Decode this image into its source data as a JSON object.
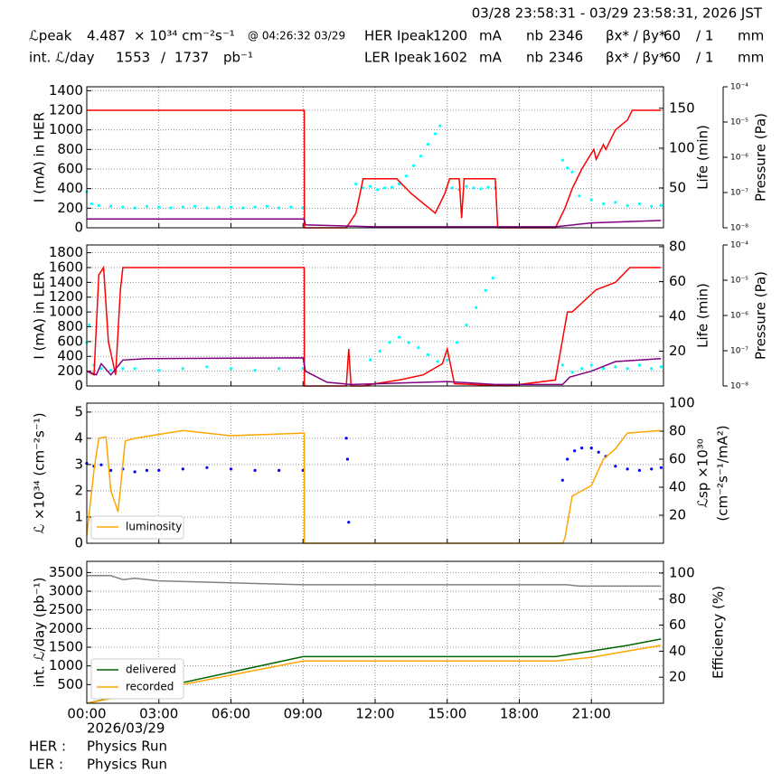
{
  "header": {
    "date_range": "03/28 23:58:31 - 03/29 23:58:31, 2026 JST",
    "row1": [
      "ℒpeak",
      "4.487",
      "× 10³⁴ cm⁻²s⁻¹",
      "@ 04:26:32 03/29",
      "HER Ipeak",
      "1200",
      "mA",
      "nb",
      "2346",
      "βx* / βy*",
      "60",
      "/ 1",
      "mm"
    ],
    "row2": [
      "int. ℒ/day",
      "1553",
      "/",
      "1737",
      "pb⁻¹",
      "LER Ipeak",
      "1602",
      "mA",
      "nb",
      "2346",
      "βx* / βy*",
      "60",
      "/ 1",
      "mm"
    ]
  },
  "chart_data": [
    {
      "type": "line",
      "ylabel": "I (mA) in HER",
      "y2label": "Life (min)",
      "y3label": "Pressure (Pa)",
      "grid": true,
      "xlim": [
        0,
        24
      ],
      "xticks": [
        0,
        3,
        6,
        9,
        12,
        15,
        18,
        21
      ],
      "ylim": [
        0,
        1440
      ],
      "yticks": [
        0,
        200,
        400,
        600,
        800,
        1000,
        1200,
        1400
      ],
      "y2lim": [
        0,
        177
      ],
      "y2ticks": [
        50,
        100,
        150
      ],
      "y3lim": [
        1e-08,
        0.0001
      ],
      "y3scale": "log",
      "y3ticks": [
        {
          "value": 1e-08,
          "label": "10⁻⁸"
        },
        {
          "value": 1e-07,
          "label": "10⁻⁷"
        },
        {
          "value": 1e-06,
          "label": "10⁻⁶"
        },
        {
          "value": 1e-05,
          "label": "10⁻⁵"
        },
        {
          "value": 0.0001,
          "label": "10⁻⁴"
        }
      ],
      "series": [
        {
          "type": "scatter",
          "color": "#00ffff",
          "axis": "y2",
          "x": [
            0,
            0.2,
            0.5,
            1,
            1.5,
            2,
            2.5,
            3,
            3.5,
            4,
            4.5,
            5,
            5.5,
            6,
            6.5,
            7,
            7.5,
            8,
            8.5,
            9,
            11.2,
            11.5,
            11.8,
            12.1,
            12.4,
            12.7,
            13.0,
            13.3,
            13.6,
            13.9,
            14.2,
            14.5,
            14.7,
            15.2,
            15.5,
            15.8,
            16.1,
            16.4,
            16.7,
            17.0,
            19.8,
            20.0,
            20.2,
            20.5,
            21,
            21.5,
            22,
            22.5,
            23,
            23.5,
            23.9
          ],
          "values": [
            45,
            30,
            28,
            27,
            26,
            25,
            27,
            26,
            25,
            26,
            27,
            25,
            26,
            26,
            25,
            26,
            27,
            25,
            26,
            25,
            55,
            50,
            52,
            48,
            50,
            51,
            55,
            65,
            78,
            90,
            105,
            118,
            128,
            50,
            48,
            52,
            50,
            49,
            51,
            50,
            85,
            75,
            70,
            40,
            35,
            30,
            32,
            28,
            30,
            27,
            28
          ]
        },
        {
          "type": "line",
          "color": "#ff0000",
          "x": [
            0,
            9.05,
            9.06,
            10.8,
            11.2,
            11.5,
            12.9,
            13.5,
            14.5,
            14.9,
            15.1,
            15.5,
            15.6,
            15.7,
            17.0,
            17.1,
            19.5,
            19.9,
            20.2,
            20.6,
            21.1,
            21.2,
            21.5,
            21.6,
            22,
            22.5,
            22.7,
            23.9
          ],
          "values": [
            1200,
            1200,
            0,
            0,
            150,
            500,
            500,
            350,
            150,
            350,
            500,
            500,
            100,
            500,
            500,
            0,
            0,
            200,
            400,
            600,
            800,
            700,
            850,
            800,
            1000,
            1100,
            1200,
            1200
          ]
        },
        {
          "type": "line",
          "color": "#800080",
          "x": [
            0,
            9.05,
            9.1,
            12,
            19.5,
            21,
            23.9
          ],
          "values": [
            90,
            90,
            30,
            10,
            10,
            50,
            75
          ]
        }
      ]
    },
    {
      "type": "line",
      "ylabel": "I (mA) in LER",
      "y2label": "Life (min)",
      "y3label": "Pressure (Pa)",
      "grid": true,
      "xlim": [
        0,
        24
      ],
      "xticks": [
        0,
        3,
        6,
        9,
        12,
        15,
        18,
        21
      ],
      "ylim": [
        0,
        1905
      ],
      "yticks": [
        0,
        200,
        400,
        600,
        800,
        1000,
        1200,
        1400,
        1600,
        1800
      ],
      "y2lim": [
        0,
        81
      ],
      "y2ticks": [
        20,
        40,
        60,
        80
      ],
      "y3lim": [
        1e-08,
        0.0001
      ],
      "y3scale": "log",
      "y3ticks": [
        {
          "value": 1e-08,
          "label": "10⁻⁸"
        },
        {
          "value": 1e-07,
          "label": "10⁻⁷"
        },
        {
          "value": 1e-06,
          "label": "10⁻⁶"
        },
        {
          "value": 1e-05,
          "label": "10⁻⁵"
        },
        {
          "value": 0.0001,
          "label": "10⁻⁴"
        }
      ],
      "series": [
        {
          "type": "scatter",
          "color": "#00ffff",
          "axis": "y2",
          "x": [
            0,
            0.1,
            0.3,
            0.6,
            1,
            1.5,
            2,
            3,
            4,
            5,
            6,
            7,
            8,
            9,
            11.8,
            12.2,
            12.6,
            13,
            13.4,
            13.8,
            14.2,
            14.6,
            15.0,
            15.4,
            15.8,
            16.2,
            16.6,
            16.9,
            19.8,
            20.2,
            20.6,
            21,
            21.5,
            22,
            22.5,
            23,
            23.5,
            23.9
          ],
          "values": [
            25,
            35,
            12,
            10,
            9,
            10,
            10,
            9,
            10,
            11,
            10,
            9,
            10,
            10,
            15,
            20,
            25,
            28,
            25,
            22,
            18,
            14,
            15,
            25,
            35,
            45,
            55,
            62,
            12,
            8,
            10,
            12,
            10,
            11,
            10,
            12,
            10,
            11
          ]
        },
        {
          "type": "line",
          "color": "#ff0000",
          "x": [
            0,
            0.3,
            0.5,
            0.7,
            0.9,
            1.2,
            1.4,
            1.5,
            9.05,
            9.06,
            10.8,
            10.9,
            11.0,
            11.5,
            12.0,
            13.0,
            14.0,
            14.8,
            15.0,
            15.3,
            17.5,
            19.5,
            20.0,
            20.2,
            21.2,
            22.0,
            22.6,
            23.9
          ],
          "values": [
            200,
            150,
            1500,
            1600,
            600,
            150,
            1300,
            1600,
            1600,
            0,
            0,
            500,
            0,
            0,
            30,
            80,
            150,
            300,
            500,
            30,
            0,
            80,
            1000,
            1000,
            1300,
            1400,
            1600,
            1600
          ]
        },
        {
          "type": "line",
          "color": "#800080",
          "x": [
            0,
            0.4,
            0.6,
            1.0,
            1.5,
            2.5,
            9.0,
            9.1,
            10,
            11,
            15,
            17,
            19.8,
            20.1,
            21,
            22,
            23.9
          ],
          "values": [
            200,
            150,
            300,
            150,
            350,
            370,
            380,
            200,
            50,
            20,
            60,
            20,
            20,
            120,
            200,
            330,
            370
          ]
        }
      ]
    },
    {
      "type": "line",
      "ylabel": "ℒ ×10³⁴ (cm⁻²s⁻¹)",
      "y2label": [
        "ℒsp ×10³⁰",
        "(cm⁻²s⁻¹/mA²)"
      ],
      "grid": true,
      "legend": "lower left",
      "xlim": [
        0,
        24
      ],
      "xticks": [
        0,
        3,
        6,
        9,
        12,
        15,
        18,
        21
      ],
      "ylim": [
        0,
        5.34
      ],
      "yticks": [
        0,
        1,
        2,
        3,
        4,
        5
      ],
      "y2lim": [
        0,
        100
      ],
      "y2ticks": [
        20,
        40,
        60,
        80,
        100
      ],
      "series": [
        {
          "type": "scatter",
          "color": "#0000ff",
          "axis": "y2",
          "x": [
            0,
            0.3,
            0.6,
            1,
            1.5,
            2,
            2.5,
            3,
            4,
            5,
            6,
            7,
            8,
            9,
            10.8,
            10.85,
            10.9,
            19.8,
            20,
            20.3,
            20.6,
            21,
            21.3,
            21.6,
            22,
            22.5,
            23,
            23.5,
            23.9
          ],
          "values": [
            57,
            55,
            56,
            52,
            53,
            51,
            52,
            52,
            53,
            54,
            53,
            52,
            52,
            52,
            75,
            60,
            15,
            45,
            60,
            66,
            68,
            68,
            65,
            62,
            55,
            53,
            52,
            53,
            54
          ]
        },
        {
          "type": "line",
          "name": "luminosity",
          "color": "#ffa500",
          "x": [
            0,
            0.3,
            0.5,
            0.8,
            1.0,
            1.3,
            1.6,
            2,
            4,
            6,
            9.05,
            9.06,
            19.8,
            19.9,
            20.2,
            21,
            21.5,
            22,
            22.5,
            23.9
          ],
          "values": [
            0.3,
            2.8,
            4.0,
            4.05,
            2.0,
            1.2,
            3.9,
            4.0,
            4.3,
            4.1,
            4.2,
            0,
            0,
            0.2,
            1.8,
            2.2,
            3.2,
            3.6,
            4.2,
            4.3
          ]
        }
      ]
    },
    {
      "type": "line",
      "ylabel": "int. ℒ/day (pb⁻¹)",
      "y2label": "Efficiency (%)",
      "grid": true,
      "legend": "lower left",
      "xlim": [
        0,
        24
      ],
      "xticks": [
        {
          "value": 0,
          "label": "00:00"
        },
        {
          "value": 3,
          "label": "03:00"
        },
        {
          "value": 6,
          "label": "06:00"
        },
        {
          "value": 9,
          "label": "09:00"
        },
        {
          "value": 12,
          "label": "12:00"
        },
        {
          "value": 15,
          "label": "15:00"
        },
        {
          "value": 18,
          "label": "18:00"
        },
        {
          "value": 21,
          "label": "21:00"
        }
      ],
      "ylim": [
        0,
        3800
      ],
      "yticks": [
        500,
        1000,
        1500,
        2000,
        2500,
        3000,
        3500
      ],
      "y2lim": [
        0,
        109
      ],
      "y2ticks": [
        20,
        40,
        60,
        80,
        100
      ],
      "series": [
        {
          "type": "line",
          "color": "#808080",
          "axis": "y2",
          "x": [
            0,
            1,
            1.5,
            2,
            3,
            5,
            7,
            9,
            20,
            20.5,
            23.9
          ],
          "values": [
            98,
            98,
            95,
            96,
            94,
            93,
            92,
            91,
            91,
            90,
            90
          ]
        },
        {
          "type": "line",
          "name": "delivered",
          "color": "#006400",
          "x": [
            0,
            9,
            19.5,
            21,
            22.5,
            23.9
          ],
          "values": [
            0,
            1250,
            1250,
            1400,
            1550,
            1720
          ]
        },
        {
          "type": "line",
          "name": "recorded",
          "color": "#ffa500",
          "x": [
            0,
            9,
            19.5,
            21,
            22.5,
            23.9
          ],
          "values": [
            0,
            1130,
            1130,
            1230,
            1400,
            1550
          ]
        }
      ]
    }
  ],
  "footer": {
    "date": "2026/03/29",
    "rows": [
      [
        "HER :",
        "Physics Run"
      ],
      [
        "LER :",
        "Physics Run"
      ]
    ]
  }
}
